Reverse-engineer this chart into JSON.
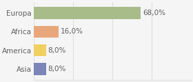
{
  "categories": [
    "Europa",
    "Africa",
    "America",
    "Asia"
  ],
  "values": [
    68.0,
    16.0,
    8.0,
    8.0
  ],
  "bar_colors": [
    "#a8bc8a",
    "#e8a87c",
    "#f0d060",
    "#7b85b8"
  ],
  "label_texts": [
    "68,0%",
    "16,0%",
    "8,0%",
    "8,0%"
  ],
  "xlim": [
    0,
    100
  ],
  "background_color": "#f5f5f5",
  "label_fontsize": 7.5,
  "category_fontsize": 7.5,
  "bar_height": 0.65,
  "grid_color": "#e0e0e0",
  "text_color": "#606060"
}
